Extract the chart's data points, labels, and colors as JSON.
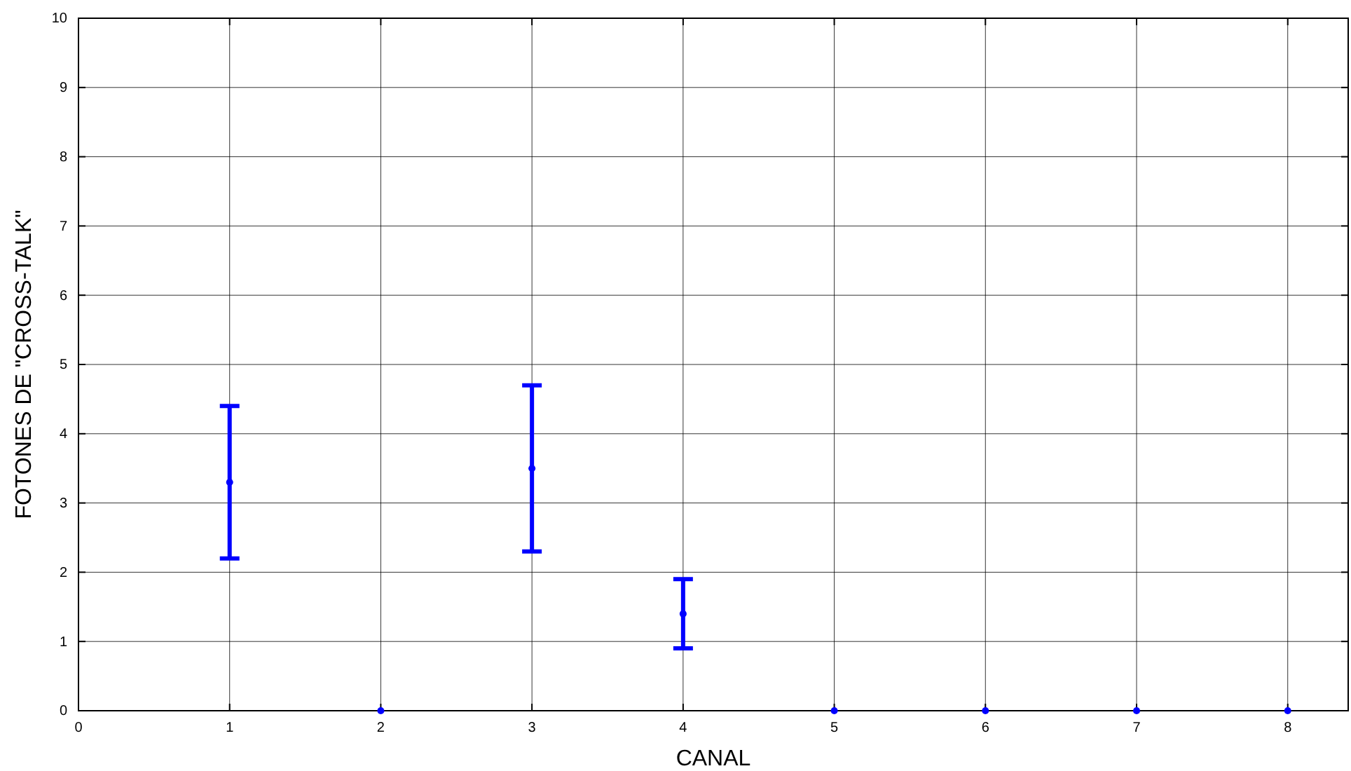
{
  "chart_data": {
    "type": "scatter",
    "xlabel": "CANAL",
    "ylabel": "FOTONES DE \"CROSS-TALK\"",
    "x": [
      1,
      2,
      3,
      4,
      5,
      6,
      7,
      8
    ],
    "values": [
      3.3,
      0,
      3.5,
      1.4,
      0,
      0,
      0,
      0
    ],
    "errors": [
      [
        2.2,
        4.4
      ],
      null,
      [
        2.3,
        4.7
      ],
      [
        0.9,
        1.9
      ],
      null,
      null,
      null,
      null
    ],
    "color": "#0000ff",
    "marker": "circle",
    "xlim": [
      0,
      8.4
    ],
    "xticks": [
      0,
      1,
      2,
      3,
      4,
      5,
      6,
      7,
      8
    ],
    "ylim": [
      0,
      10
    ],
    "yticks": [
      0,
      1,
      2,
      3,
      4,
      5,
      6,
      7,
      8,
      9,
      10
    ],
    "grid": true
  }
}
